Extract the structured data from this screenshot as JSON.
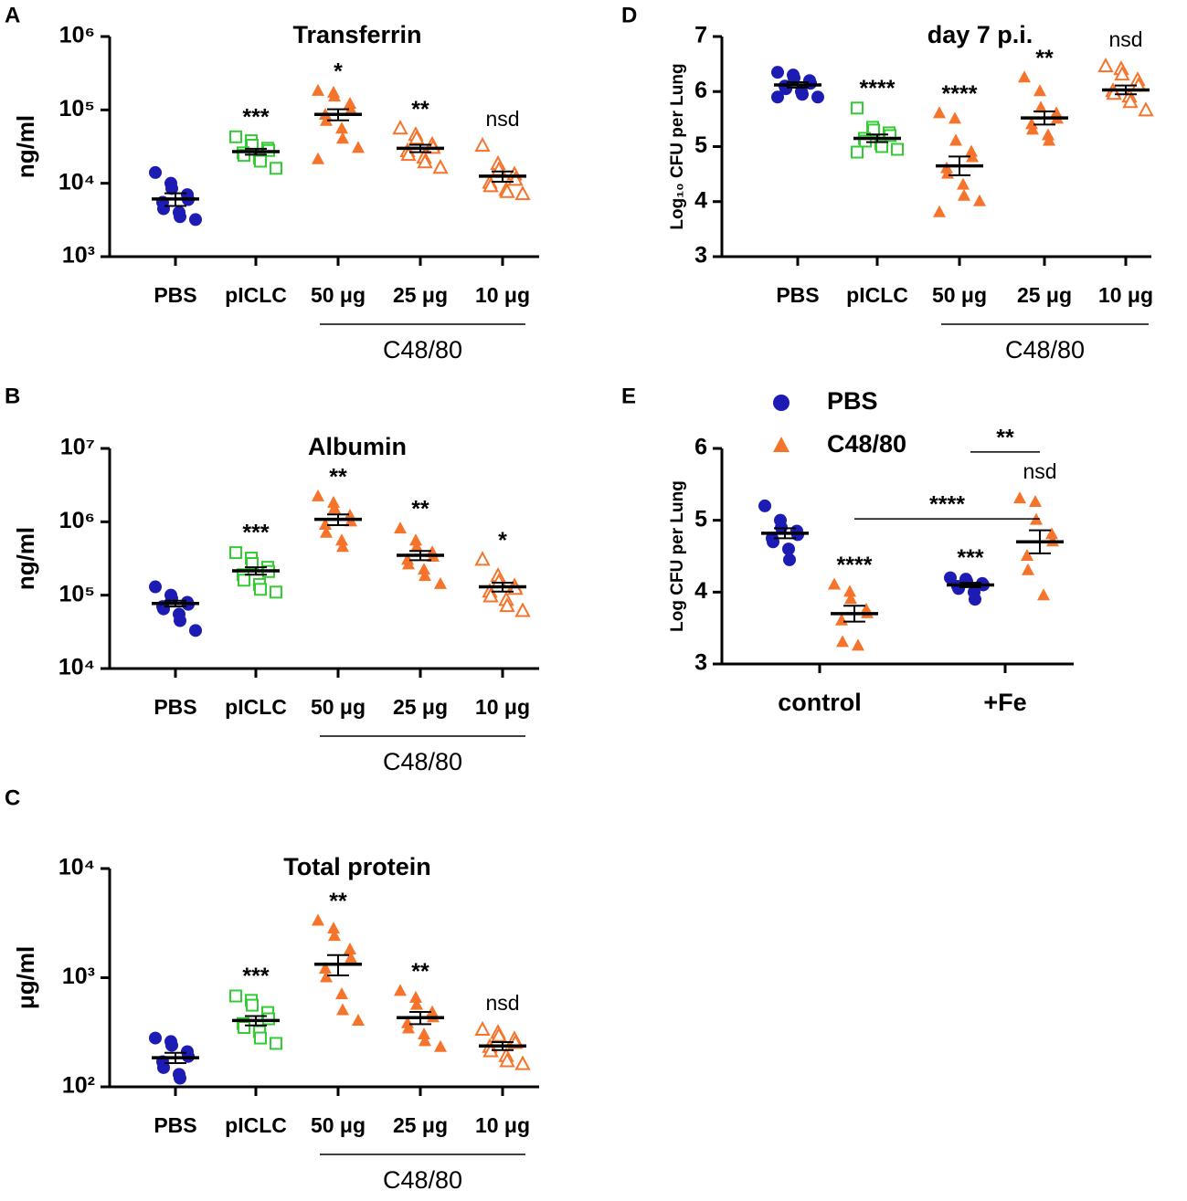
{
  "chart_data": [
    {
      "type": "dot",
      "panel": "A",
      "title": "Transferrin",
      "ylabel": "ng/ml",
      "log_y": true,
      "ylim": [
        1000,
        1000000
      ],
      "yticks": [
        {
          "value": 1000,
          "label": "10³"
        },
        {
          "value": 10000,
          "label": "10⁴"
        },
        {
          "value": 100000,
          "label": "10⁵"
        },
        {
          "value": 1000000,
          "label": "10⁶"
        }
      ],
      "categories": [
        "PBS",
        "pICLC",
        "50 μg",
        "25 μg",
        "10 μg"
      ],
      "group": "C48/80",
      "colors": [
        "#1c1cb4",
        "#33cc33",
        "#f5732a",
        "#f5732a",
        "#f5732a"
      ],
      "markers": [
        "circle",
        "open-square",
        "triangle",
        "open-triangle",
        "open-triangle"
      ],
      "points": [
        [
          14000,
          10000,
          8500,
          7000,
          6000,
          5500,
          4500,
          4000,
          3500,
          3200
        ],
        [
          43000,
          38000,
          33000,
          30000,
          28000,
          26000,
          24000,
          22000,
          20000,
          16000
        ],
        [
          180000,
          170000,
          150000,
          120000,
          100000,
          85000,
          70000,
          55000,
          40000,
          30000,
          21000
        ],
        [
          55000,
          45000,
          40000,
          33000,
          30000,
          27000,
          24000,
          22000,
          19000,
          16000
        ],
        [
          32000,
          18000,
          15000,
          13000,
          11000,
          10000,
          9000,
          8000,
          7500,
          7000
        ]
      ],
      "means": [
        6100,
        27000,
        87000,
        30000,
        12500
      ],
      "errors": [
        1200,
        2500,
        15000,
        3500,
        2000
      ],
      "annotations": [
        null,
        "***",
        "*",
        "**",
        "nsd"
      ]
    },
    {
      "type": "dot",
      "panel": "B",
      "title": "Albumin",
      "ylabel": "ng/ml",
      "log_y": true,
      "ylim": [
        10000,
        10000000
      ],
      "yticks": [
        {
          "value": 10000,
          "label": "10⁴"
        },
        {
          "value": 100000,
          "label": "10⁵"
        },
        {
          "value": 1000000,
          "label": "10⁶"
        },
        {
          "value": 10000000,
          "label": "10⁷"
        }
      ],
      "categories": [
        "PBS",
        "pICLC",
        "50 μg",
        "25 μg",
        "10 μg"
      ],
      "group": "C48/80",
      "colors": [
        "#1c1cb4",
        "#33cc33",
        "#f5732a",
        "#f5732a",
        "#f5732a"
      ],
      "markers": [
        "circle",
        "open-square",
        "triangle",
        "triangle",
        "open-triangle"
      ],
      "points": [
        [
          130000,
          100000,
          90000,
          80000,
          75000,
          70000,
          65000,
          55000,
          45000,
          33000
        ],
        [
          380000,
          320000,
          270000,
          240000,
          210000,
          190000,
          160000,
          140000,
          120000,
          110000
        ],
        [
          2200000,
          1800000,
          1500000,
          1200000,
          1000000,
          900000,
          700000,
          550000,
          450000
        ],
        [
          800000,
          550000,
          450000,
          380000,
          330000,
          300000,
          260000,
          220000,
          180000,
          140000
        ],
        [
          300000,
          180000,
          150000,
          130000,
          120000,
          110000,
          95000,
          85000,
          70000,
          60000
        ]
      ],
      "means": [
        77000,
        215000,
        1080000,
        350000,
        130000
      ],
      "errors": [
        7000,
        25000,
        180000,
        50000,
        18000
      ],
      "annotations": [
        null,
        "***",
        "**",
        "**",
        "*"
      ]
    },
    {
      "type": "dot",
      "panel": "C",
      "title": "Total protein",
      "ylabel": "μg/ml",
      "log_y": true,
      "ylim": [
        100,
        10000
      ],
      "yticks": [
        {
          "value": 100,
          "label": "10²"
        },
        {
          "value": 1000,
          "label": "10³"
        },
        {
          "value": 10000,
          "label": "10⁴"
        }
      ],
      "categories": [
        "PBS",
        "pICLC",
        "50 μg",
        "25 μg",
        "10 μg"
      ],
      "group": "C48/80",
      "colors": [
        "#1c1cb4",
        "#33cc33",
        "#f5732a",
        "#f5732a",
        "#f5732a"
      ],
      "markers": [
        "circle",
        "open-square",
        "triangle",
        "triangle",
        "open-triangle"
      ],
      "points": [
        [
          280,
          260,
          240,
          210,
          190,
          170,
          150,
          130,
          120
        ],
        [
          680,
          620,
          560,
          480,
          420,
          380,
          350,
          320,
          280,
          250
        ],
        [
          3300,
          2800,
          2400,
          1800,
          1500,
          1200,
          1000,
          700,
          500,
          400
        ],
        [
          750,
          650,
          560,
          480,
          430,
          380,
          340,
          300,
          260,
          230
        ],
        [
          330,
          310,
          290,
          270,
          250,
          230,
          210,
          190,
          170,
          160
        ]
      ],
      "means": [
        185,
        405,
        1330,
        430,
        237
      ],
      "errors": [
        20,
        40,
        280,
        55,
        20
      ],
      "annotations": [
        null,
        "***",
        "**",
        "**",
        "nsd"
      ]
    },
    {
      "type": "dot",
      "panel": "D",
      "title": "day 7 p.i.",
      "ylabel": "Log₁₀ CFU per Lung",
      "log_y": false,
      "ylim": [
        3,
        7
      ],
      "yticks": [
        3,
        4,
        5,
        6,
        7
      ],
      "categories": [
        "PBS",
        "pICLC",
        "50 μg",
        "25 μg",
        "10 μg"
      ],
      "group": "C48/80",
      "colors": [
        "#1c1cb4",
        "#33cc33",
        "#f5732a",
        "#f5732a",
        "#f5732a"
      ],
      "markers": [
        "circle",
        "open-square",
        "triangle",
        "triangle",
        "open-triangle"
      ],
      "points": [
        [
          6.35,
          6.3,
          6.25,
          6.2,
          6.15,
          6.1,
          6.05,
          6.0,
          5.95,
          5.9,
          5.9
        ],
        [
          5.7,
          5.35,
          5.3,
          5.25,
          5.2,
          5.15,
          5.1,
          5.05,
          5.0,
          4.95,
          4.9
        ],
        [
          5.6,
          5.5,
          5.1,
          4.9,
          4.8,
          4.6,
          4.5,
          4.3,
          4.1,
          4.0,
          3.8
        ],
        [
          6.25,
          6.0,
          5.7,
          5.6,
          5.5,
          5.4,
          5.3,
          5.2,
          5.1
        ],
        [
          6.45,
          6.4,
          6.3,
          6.2,
          6.1,
          6.0,
          5.95,
          5.9,
          5.8,
          5.65
        ]
      ],
      "means": [
        6.12,
        5.15,
        4.65,
        5.52,
        6.03
      ],
      "errors": [
        0.05,
        0.07,
        0.17,
        0.12,
        0.08
      ],
      "annotations": [
        null,
        "****",
        "****",
        "**",
        "nsd"
      ]
    },
    {
      "type": "grouped-dot",
      "panel": "E",
      "ylabel": "Log CFU per Lung",
      "log_y": false,
      "ylim": [
        3,
        6
      ],
      "yticks": [
        3,
        4,
        5,
        6
      ],
      "categories": [
        "control",
        "+Fe"
      ],
      "series": [
        {
          "name": "PBS",
          "color": "#1c1cb4",
          "marker": "circle",
          "points": [
            [
              5.2,
              5.0,
              4.9,
              4.85,
              4.8,
              4.75,
              4.7,
              4.6,
              4.45
            ],
            [
              4.2,
              4.18,
              4.15,
              4.12,
              4.1,
              4.08,
              4.05,
              4.0,
              3.9
            ]
          ],
          "means": [
            4.82,
            4.1
          ],
          "errors": [
            0.07,
            0.03
          ],
          "annotations": [
            null,
            "***"
          ]
        },
        {
          "name": "C48/80",
          "color": "#f5732a",
          "marker": "triangle",
          "points": [
            [
              4.1,
              4.0,
              3.9,
              3.75,
              3.7,
              3.6,
              3.3,
              3.25
            ],
            [
              5.3,
              5.25,
              5.0,
              4.8,
              4.7,
              4.5,
              4.3,
              3.95
            ]
          ],
          "means": [
            3.7,
            4.7
          ],
          "errors": [
            0.11,
            0.16
          ],
          "annotations": [
            "****",
            "nsd"
          ]
        }
      ],
      "comparisons": [
        "**",
        "****"
      ]
    }
  ]
}
